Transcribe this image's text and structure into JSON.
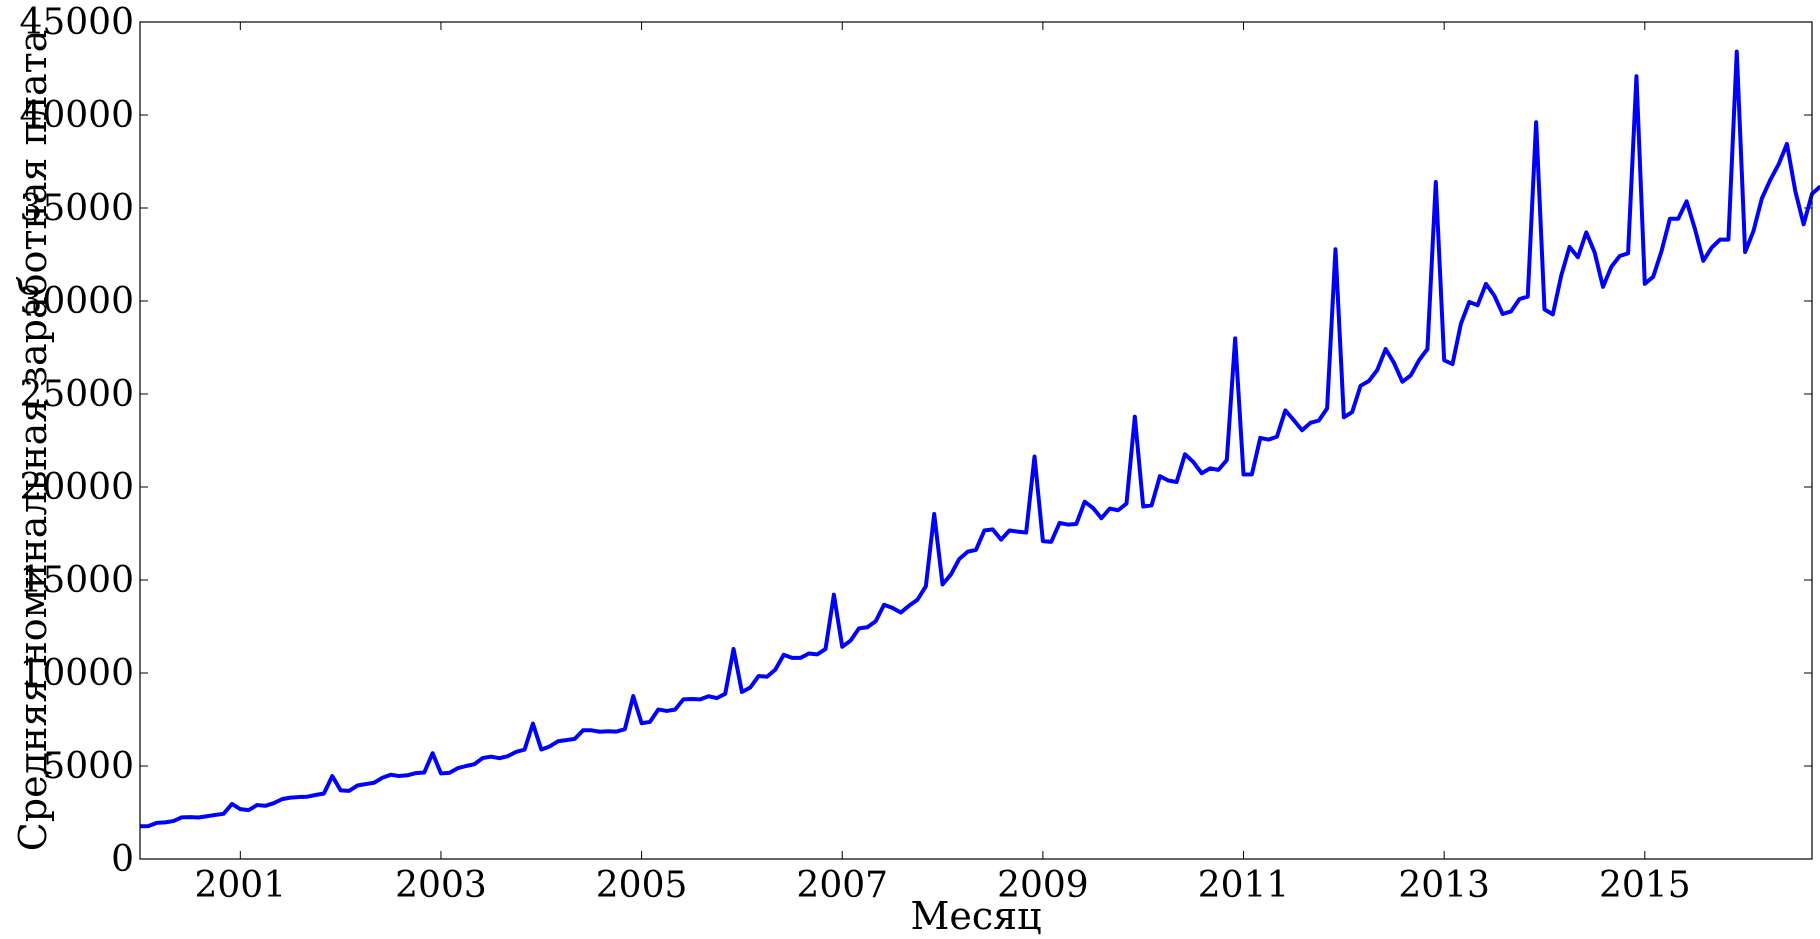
{
  "chart_data": {
    "type": "line",
    "title": "",
    "xlabel": "Месяц",
    "ylabel": "Средняя номинальная заработная плата",
    "x_start": "2000-01",
    "x_end": "2016-09",
    "xlim": [
      "2000-01",
      "2016-09"
    ],
    "ylim": [
      0,
      45000
    ],
    "x_ticks": [
      "2001",
      "2003",
      "2005",
      "2007",
      "2009",
      "2011",
      "2013",
      "2015"
    ],
    "y_ticks": [
      "0",
      "5000",
      "10000",
      "15000",
      "20000",
      "25000",
      "30000",
      "35000",
      "40000",
      "45000"
    ],
    "grid": false,
    "legend": "none",
    "line_color": "#0000ff",
    "series": [
      {
        "values": [
          1760,
          1770,
          1940,
          1970,
          2040,
          2240,
          2250,
          2230,
          2300,
          2370,
          2430,
          2960,
          2680,
          2630,
          2900,
          2860,
          3000,
          3220,
          3300,
          3330,
          3350,
          3440,
          3520,
          4460,
          3690,
          3660,
          3950,
          4030,
          4100,
          4370,
          4530,
          4460,
          4500,
          4620,
          4650,
          5690,
          4600,
          4630,
          4880,
          5000,
          5100,
          5430,
          5500,
          5420,
          5530,
          5760,
          5880,
          7280,
          5890,
          6050,
          6330,
          6390,
          6460,
          6920,
          6920,
          6840,
          6870,
          6850,
          6980,
          8760,
          7300,
          7370,
          8040,
          7960,
          8030,
          8580,
          8600,
          8580,
          8750,
          8650,
          8880,
          11290,
          8980,
          9220,
          9840,
          9800,
          10180,
          10980,
          10810,
          10810,
          11050,
          11000,
          11290,
          14210,
          11410,
          11740,
          12400,
          12460,
          12780,
          13670,
          13500,
          13250,
          13620,
          13940,
          14660,
          18550,
          14760,
          15300,
          16130,
          16520,
          16620,
          17660,
          17720,
          17170,
          17660,
          17600,
          17550,
          21640,
          17090,
          17050,
          18070,
          17980,
          18010,
          19210,
          18870,
          18320,
          18840,
          18750,
          19110,
          23780,
          18950,
          19010,
          20580,
          20350,
          20270,
          21760,
          21340,
          20740,
          21000,
          20920,
          21450,
          27990,
          20670,
          20680,
          22640,
          22550,
          22710,
          24120,
          23600,
          23050,
          23450,
          23570,
          24230,
          32780,
          23750,
          24030,
          25440,
          25700,
          26290,
          27420,
          26670,
          25660,
          26000,
          26820,
          27420,
          36400,
          26810,
          26610,
          28770,
          29950,
          29770,
          30920,
          30290,
          29300,
          29440,
          30100,
          30240,
          39610,
          29550,
          29280,
          31360,
          32910,
          32350,
          33690,
          32610,
          30760,
          31840,
          32420,
          32560,
          42080,
          30920,
          31300,
          32680,
          34420,
          34420,
          35360,
          33870,
          32160,
          32870,
          33300,
          33300,
          43410,
          32630,
          33760,
          35510,
          36500,
          37340,
          38450,
          35910,
          34120,
          35760,
          36160
        ]
      }
    ]
  }
}
